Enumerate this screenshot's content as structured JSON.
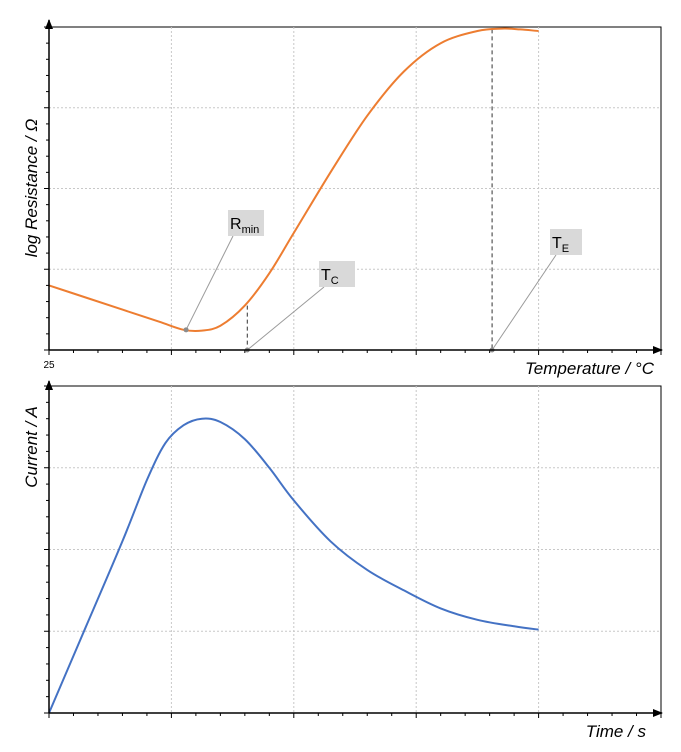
{
  "chart_data": [
    {
      "type": "line",
      "title": "",
      "xlabel": "Temperature / °C",
      "ylabel": "log Resistance / Ω",
      "x_start_label": "25",
      "grid": true,
      "xlim": [
        0,
        5
      ],
      "ylim": [
        0,
        4
      ],
      "series": [
        {
          "name": "resistance",
          "color": "#ED7D31",
          "x": [
            0,
            0.3,
            0.6,
            0.9,
            1.1,
            1.25,
            1.4,
            1.6,
            1.8,
            2.0,
            2.3,
            2.6,
            2.9,
            3.2,
            3.5,
            3.7,
            3.85,
            4.0
          ],
          "y": [
            0.8,
            0.65,
            0.5,
            0.35,
            0.25,
            0.24,
            0.3,
            0.55,
            0.95,
            1.45,
            2.2,
            2.9,
            3.45,
            3.8,
            3.95,
            3.98,
            3.97,
            3.95
          ]
        }
      ],
      "annotations": [
        {
          "main": "R",
          "sub": "min",
          "x": 1.12,
          "y": 0.25
        },
        {
          "main": "T",
          "sub": "C",
          "x": 1.62,
          "y": 0.0
        },
        {
          "main": "T",
          "sub": "E",
          "x": 3.62,
          "y": 0.0
        }
      ],
      "markers": [
        {
          "name": "tc-marker",
          "x": 1.62,
          "y": 0.55
        },
        {
          "name": "te-marker",
          "x": 3.62,
          "y": 3.97
        }
      ]
    },
    {
      "type": "line",
      "title": "",
      "xlabel": "Time / s",
      "ylabel": "Current / A",
      "grid": true,
      "xlim": [
        0,
        5
      ],
      "ylim": [
        0,
        4
      ],
      "series": [
        {
          "name": "current",
          "color": "#4472C4",
          "x": [
            0,
            0.3,
            0.6,
            0.8,
            0.95,
            1.1,
            1.25,
            1.4,
            1.6,
            1.8,
            2.0,
            2.3,
            2.6,
            2.9,
            3.2,
            3.5,
            3.8,
            4.0
          ],
          "y": [
            0,
            1.05,
            2.1,
            2.85,
            3.3,
            3.52,
            3.6,
            3.56,
            3.35,
            3.0,
            2.6,
            2.1,
            1.75,
            1.5,
            1.28,
            1.14,
            1.06,
            1.02
          ]
        }
      ]
    }
  ]
}
